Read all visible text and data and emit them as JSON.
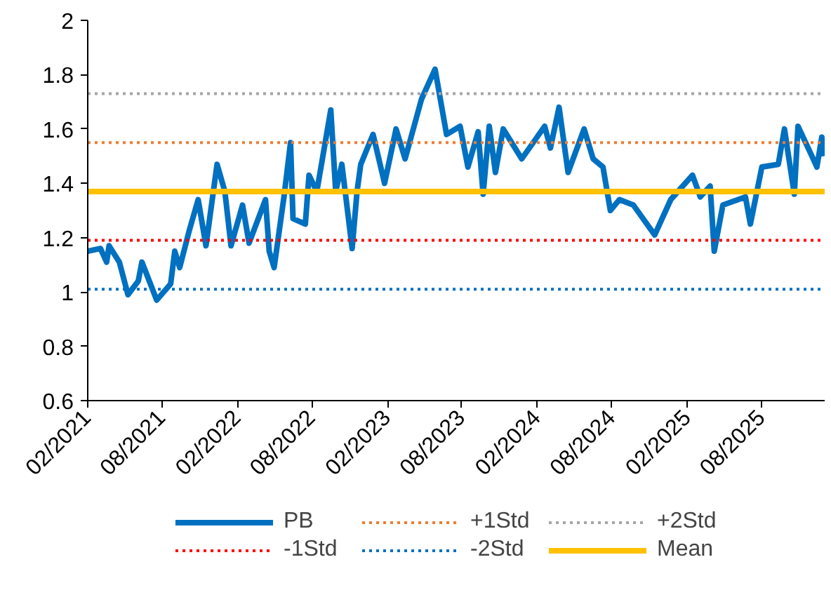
{
  "chart_data": {
    "type": "line",
    "x": [
      "2021-02-01",
      "2021-03-04",
      "2021-03-19",
      "2021-03-25",
      "2021-04-19",
      "2021-05-10",
      "2021-06-04",
      "2021-06-13",
      "2021-07-19",
      "2021-08-22",
      "2021-09-01",
      "2021-09-13",
      "2021-10-07",
      "2021-10-28",
      "2021-11-16",
      "2021-12-13",
      "2022-01-01",
      "2022-01-16",
      "2022-02-13",
      "2022-03-01",
      "2022-04-10",
      "2022-04-19",
      "2022-05-01",
      "2022-05-25",
      "2022-06-10",
      "2022-06-16",
      "2022-07-16",
      "2022-07-25",
      "2022-08-13",
      "2022-09-16",
      "2022-09-28",
      "2022-10-13",
      "2022-11-07",
      "2022-11-19",
      "2022-11-28",
      "2022-12-28",
      "2023-01-25",
      "2023-02-22",
      "2023-03-16",
      "2023-04-25",
      "2023-05-28",
      "2023-06-25",
      "2023-07-28",
      "2023-08-16",
      "2023-09-10",
      "2023-09-22",
      "2023-10-07",
      "2023-10-22",
      "2023-11-10",
      "2023-12-25",
      "2024-02-19",
      "2024-03-04",
      "2024-03-25",
      "2024-04-16",
      "2024-05-25",
      "2024-06-16",
      "2024-07-10",
      "2024-07-28",
      "2024-08-19",
      "2024-09-22",
      "2024-11-13",
      "2024-12-22",
      "2025-02-13",
      "2025-03-04",
      "2025-03-28",
      "2025-04-07",
      "2025-04-28",
      "2025-06-22",
      "2025-07-04",
      "2025-08-01",
      "2025-09-10",
      "2025-09-25",
      "2025-10-19",
      "2025-10-28",
      "2025-12-01",
      "2025-12-13",
      "2025-12-25",
      "2025-12-31"
    ],
    "series": [
      {
        "name": "PB",
        "color": "#0070c0",
        "values": [
          1.15,
          1.16,
          1.11,
          1.17,
          1.11,
          0.99,
          1.04,
          1.11,
          0.97,
          1.03,
          1.15,
          1.09,
          1.23,
          1.34,
          1.17,
          1.47,
          1.37,
          1.17,
          1.32,
          1.18,
          1.34,
          1.15,
          1.09,
          1.35,
          1.55,
          1.27,
          1.25,
          1.43,
          1.37,
          1.67,
          1.37,
          1.47,
          1.16,
          1.37,
          1.47,
          1.58,
          1.4,
          1.6,
          1.49,
          1.71,
          1.82,
          1.58,
          1.61,
          1.46,
          1.59,
          1.36,
          1.61,
          1.44,
          1.6,
          1.49,
          1.61,
          1.53,
          1.68,
          1.44,
          1.6,
          1.49,
          1.46,
          1.3,
          1.34,
          1.32,
          1.21,
          1.34,
          1.43,
          1.35,
          1.39,
          1.15,
          1.32,
          1.35,
          1.25,
          1.46,
          1.47,
          1.6,
          1.36,
          1.61,
          1.5,
          1.46,
          1.57,
          1.5
        ]
      }
    ],
    "xlim": [
      "2021-02-01",
      "2026-01-01"
    ],
    "xticks": [
      {
        "value": "2021-02",
        "label": "02/2021"
      },
      {
        "value": "2021-08",
        "label": "08/2021"
      },
      {
        "value": "2022-02",
        "label": "02/2022"
      },
      {
        "value": "2022-08",
        "label": "08/2022"
      },
      {
        "value": "2023-02",
        "label": "02/2023"
      },
      {
        "value": "2023-08",
        "label": "08/2023"
      },
      {
        "value": "2024-02",
        "label": "02/2024"
      },
      {
        "value": "2024-08",
        "label": "08/2024"
      },
      {
        "value": "2025-02",
        "label": "02/2025"
      },
      {
        "value": "2025-08",
        "label": "08/2025"
      }
    ],
    "ylim": [
      0.6,
      2
    ],
    "yticks": [
      0.6,
      0.8,
      1,
      1.2,
      1.4,
      1.6,
      1.8,
      2
    ],
    "ref_lines": [
      {
        "axis": "y",
        "value": 1.55,
        "label": "+1Std",
        "color": "#ed7d31",
        "line_style": "dotted"
      },
      {
        "axis": "y",
        "value": 1.73,
        "label": "+2Std",
        "color": "#a5a5a5",
        "line_style": "dotted"
      },
      {
        "axis": "y",
        "value": 1.19,
        "label": "-1Std",
        "color": "#ff0000",
        "line_style": "dotted"
      },
      {
        "axis": "y",
        "value": 1.01,
        "label": "-2Std",
        "color": "#0070c0",
        "line_style": "dotted"
      },
      {
        "axis": "y",
        "value": 1.37,
        "label": "Mean",
        "color": "#ffc000",
        "line_style": "solid"
      }
    ],
    "grid": false,
    "legend": "bottom"
  }
}
